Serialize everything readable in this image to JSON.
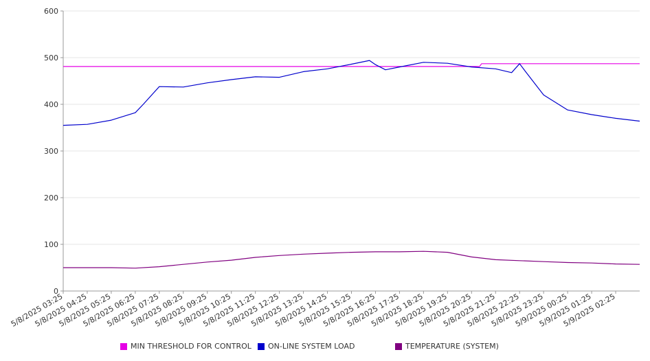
{
  "chart_data": {
    "type": "line",
    "title": "",
    "xlabel": "",
    "ylabel": "",
    "ylim": [
      0,
      600
    ],
    "yticks": [
      0,
      100,
      200,
      300,
      400,
      500,
      600
    ],
    "grid": "horizontal",
    "legend_position": "bottom",
    "x_tick_labels": [
      "5/8/2025 03:25",
      "5/8/2025 04:25",
      "5/8/2025 05:25",
      "5/8/2025 06:25",
      "5/8/2025 07:25",
      "5/8/2025 08:25",
      "5/8/2025 09:25",
      "5/8/2025 10:25",
      "5/8/2025 11:25",
      "5/8/2025 12:25",
      "5/8/2025 13:25",
      "5/8/2025 14:25",
      "5/8/2025 15:25",
      "5/8/2025 16:25",
      "5/8/2025 17:25",
      "5/8/2025 18:25",
      "5/8/2025 19:25",
      "5/8/2025 20:25",
      "5/8/2025 21:25",
      "5/8/2025 22:25",
      "5/8/2025 23:25",
      "5/9/2025 00:25",
      "5/9/2025 01:25",
      "5/9/2025 02:25"
    ],
    "series": [
      {
        "name": "MIN THRESHOLD FOR CONTROL",
        "color": "#e600e6",
        "x": [
          "5/8/2025 03:25",
          "5/8/2025 20:45",
          "5/8/2025 20:50",
          "5/9/2025 03:25"
        ],
        "values": [
          481,
          481,
          487,
          487
        ]
      },
      {
        "name": "ON-LINE SYSTEM LOAD",
        "color": "#0000cc",
        "x": [
          "5/8/2025 03:25",
          "5/8/2025 04:25",
          "5/8/2025 05:25",
          "5/8/2025 06:25",
          "5/8/2025 06:45",
          "5/8/2025 07:25",
          "5/8/2025 08:25",
          "5/8/2025 09:25",
          "5/8/2025 10:25",
          "5/8/2025 11:25",
          "5/8/2025 12:25",
          "5/8/2025 13:25",
          "5/8/2025 14:25",
          "5/8/2025 15:25",
          "5/8/2025 16:10",
          "5/8/2025 16:25",
          "5/8/2025 16:50",
          "5/8/2025 17:25",
          "5/8/2025 18:25",
          "5/8/2025 19:25",
          "5/8/2025 20:25",
          "5/8/2025 21:25",
          "5/8/2025 22:05",
          "5/8/2025 22:25",
          "5/8/2025 22:40",
          "5/8/2025 23:25",
          "5/9/2025 00:25",
          "5/9/2025 01:25",
          "5/9/2025 02:25",
          "5/9/2025 03:25"
        ],
        "values": [
          355,
          357,
          366,
          382,
          400,
          438,
          437,
          446,
          453,
          459,
          458,
          470,
          476,
          486,
          494,
          485,
          474,
          480,
          490,
          488,
          480,
          476,
          468,
          487,
          470,
          420,
          388,
          378,
          370,
          364
        ]
      },
      {
        "name": "TEMPERATURE (SYSTEM)",
        "color": "#800080",
        "x": [
          "5/8/2025 03:25",
          "5/8/2025 05:25",
          "5/8/2025 06:25",
          "5/8/2025 07:25",
          "5/8/2025 08:25",
          "5/8/2025 09:25",
          "5/8/2025 10:25",
          "5/8/2025 11:25",
          "5/8/2025 12:25",
          "5/8/2025 13:25",
          "5/8/2025 14:25",
          "5/8/2025 15:25",
          "5/8/2025 16:25",
          "5/8/2025 17:25",
          "5/8/2025 18:25",
          "5/8/2025 19:25",
          "5/8/2025 20:25",
          "5/8/2025 21:25",
          "5/8/2025 22:25",
          "5/8/2025 23:25",
          "5/9/2025 00:25",
          "5/9/2025 01:25",
          "5/9/2025 02:25",
          "5/9/2025 03:25"
        ],
        "values": [
          50,
          50,
          49,
          52,
          57,
          62,
          66,
          72,
          76,
          79,
          81,
          83,
          84,
          84,
          85,
          83,
          73,
          67,
          65,
          63,
          61,
          60,
          58,
          57
        ]
      }
    ]
  }
}
